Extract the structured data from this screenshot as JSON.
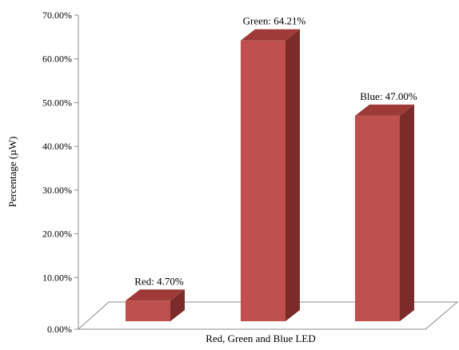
{
  "chart_data": {
    "type": "bar",
    "categories": [
      "Red",
      "Green",
      "Blue"
    ],
    "values": [
      4.7,
      64.21,
      47.0
    ],
    "data_labels": [
      "Red: 4.70%",
      "Green: 64.21%",
      "Blue: 47.00%"
    ],
    "title": "",
    "xlabel": "Red, Green and Blue LED",
    "ylabel": "Percentage (µW)",
    "ylim": [
      0,
      70
    ],
    "yticks": [
      "0.00%",
      "10.00%",
      "20.00%",
      "30.00%",
      "40.00%",
      "50.00%",
      "60.00%",
      "70.00%"
    ],
    "grid": false,
    "legend": "none",
    "style": "3d-column",
    "colors": {
      "front": "#c0504d",
      "top": "#9e3b38",
      "side": "#7b2c2a",
      "floor_edge": "#8c8c8c"
    }
  }
}
